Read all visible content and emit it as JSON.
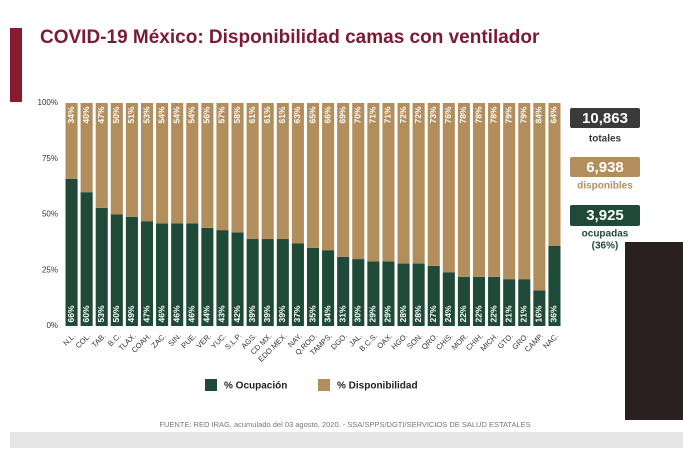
{
  "chart_data": {
    "type": "bar",
    "stacked": true,
    "title": "COVID-19 México: Disponibilidad camas con ventilador",
    "categories": [
      "N.L.",
      "COL.",
      "TAB.",
      "B.C.",
      "TLAX.",
      "COAH.",
      "ZAC.",
      "SIN.",
      "PUE.",
      "VER.",
      "YUC.",
      "S.L.P.",
      "AGS.",
      "CD.MX.",
      "EDO.MEX.",
      "NAY.",
      "Q.ROO.",
      "TAMPS.",
      "DGO.",
      "JAL.",
      "B.C.S.",
      "OAX.",
      "HGO.",
      "SON.",
      "QRO.",
      "CHIS.",
      "MOR.",
      "CHIH.",
      "MICH.",
      "GTO.",
      "GRO.",
      "CAMP.",
      "NAC."
    ],
    "series": [
      {
        "name": "% Ocupación",
        "color": "#1e4a37",
        "values": [
          66,
          60,
          53,
          50,
          49,
          47,
          46,
          46,
          46,
          44,
          43,
          42,
          39,
          39,
          39,
          37,
          35,
          34,
          31,
          30,
          29,
          29,
          28,
          28,
          27,
          24,
          22,
          22,
          22,
          21,
          21,
          16,
          36
        ],
        "value_labels": [
          "66%",
          "60%",
          "53%",
          "50%",
          "49%",
          "47%",
          "46%",
          "46%",
          "46%",
          "44%",
          "43%",
          "42%",
          "39%",
          "39%",
          "39%",
          "37%",
          "35%",
          "34%",
          "31%",
          "30%",
          "29%",
          "29%",
          "28%",
          "28%",
          "27%",
          "24%",
          "22%",
          "22%",
          "22%",
          "21%",
          "21%",
          "16%",
          "36%"
        ]
      },
      {
        "name": "% Disponibilidad",
        "color": "#b38e5d",
        "values": [
          34,
          40,
          47,
          50,
          51,
          53,
          54,
          54,
          54,
          56,
          57,
          58,
          61,
          61,
          61,
          63,
          65,
          66,
          69,
          70,
          71,
          71,
          72,
          72,
          73,
          76,
          78,
          78,
          78,
          79,
          79,
          84,
          64
        ],
        "value_labels": [
          "34%",
          "40%",
          "47%",
          "50%",
          "51%",
          "53%",
          "54%",
          "54%",
          "54%",
          "56%",
          "57%",
          "58%",
          "61%",
          "61%",
          "61%",
          "63%",
          "65%",
          "66%",
          "69%",
          "70%",
          "71%",
          "71%",
          "72%",
          "72%",
          "73%",
          "76%",
          "78%",
          "78%",
          "78%",
          "79%",
          "79%",
          "84%",
          "64%"
        ]
      }
    ],
    "ylim": [
      0,
      100
    ],
    "yticks": [
      {
        "value": 0,
        "label": "0%"
      },
      {
        "value": 25,
        "label": "25%"
      },
      {
        "value": 50,
        "label": "50%"
      },
      {
        "value": 75,
        "label": "75%"
      },
      {
        "value": 100,
        "label": "100%"
      }
    ],
    "grid": false,
    "legend": "bottom"
  },
  "summary": {
    "total": {
      "number": "10,863",
      "label": "totales"
    },
    "available": {
      "number": "6,938",
      "label": "disponibles"
    },
    "occupied": {
      "number": "3,925",
      "label": "ocupadas",
      "share": "(36%)"
    }
  },
  "footer": "FUENTE: RED IRAG, acumulado del 03 agosto, 2020.   -   SSA/SPPS/DGTI/SERVICIOS DE SALUD ESTATALES"
}
